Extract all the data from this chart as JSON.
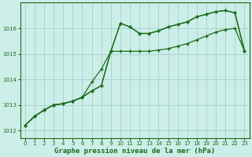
{
  "title": "Graphe pression niveau de la mer (hPa)",
  "bg_color": "#cceee8",
  "plot_bg_color": "#cceee8",
  "grid_color": "#aad4ce",
  "line_color": "#1a6b1a",
  "xlim": [
    -0.5,
    23.5
  ],
  "ylim": [
    1011.7,
    1017.0
  ],
  "yticks": [
    1012,
    1013,
    1014,
    1015,
    1016
  ],
  "xticks": [
    0,
    1,
    2,
    3,
    4,
    5,
    6,
    7,
    8,
    9,
    10,
    11,
    12,
    13,
    14,
    15,
    16,
    17,
    18,
    19,
    20,
    21,
    22,
    23
  ],
  "series1_x": [
    0,
    1,
    2,
    3,
    4,
    5,
    6,
    7,
    8,
    9,
    10,
    11,
    12,
    13,
    14,
    15,
    16,
    17,
    18,
    19,
    20,
    21,
    22,
    23
  ],
  "series1_y": [
    1012.2,
    1012.55,
    1012.8,
    1013.0,
    1013.05,
    1013.15,
    1013.3,
    1013.55,
    1013.75,
    1015.1,
    1016.2,
    1016.05,
    1015.8,
    1015.8,
    1015.9,
    1016.05,
    1016.15,
    1016.25,
    1016.45,
    1016.55,
    1016.65,
    1016.7,
    1016.6,
    1015.1
  ],
  "series2_x": [
    0,
    1,
    2,
    3,
    4,
    5,
    6,
    7,
    8,
    9,
    10,
    11,
    12,
    13,
    14,
    15,
    16,
    17,
    18,
    19,
    20,
    21,
    22,
    23
  ],
  "series2_y": [
    1012.2,
    1012.55,
    1012.8,
    1013.0,
    1013.05,
    1013.15,
    1013.3,
    1013.9,
    1014.4,
    1015.1,
    1016.2,
    1016.05,
    1015.8,
    1015.8,
    1015.9,
    1016.05,
    1016.15,
    1016.25,
    1016.45,
    1016.55,
    1016.65,
    1016.7,
    1016.6,
    1015.1
  ],
  "series3_x": [
    0,
    1,
    2,
    3,
    4,
    5,
    6,
    7,
    8,
    9,
    10,
    11,
    12,
    13,
    14,
    15,
    16,
    17,
    18,
    19,
    20,
    21,
    22,
    23
  ],
  "series3_y": [
    1012.2,
    1012.55,
    1012.8,
    1013.0,
    1013.05,
    1013.15,
    1013.3,
    1013.55,
    1013.75,
    1015.1,
    1015.1,
    1015.1,
    1015.1,
    1015.1,
    1015.15,
    1015.2,
    1015.3,
    1015.4,
    1015.55,
    1015.7,
    1015.85,
    1015.95,
    1016.0,
    1015.1
  ],
  "xlabel_fontsize": 6.5,
  "tick_fontsize": 5.0
}
